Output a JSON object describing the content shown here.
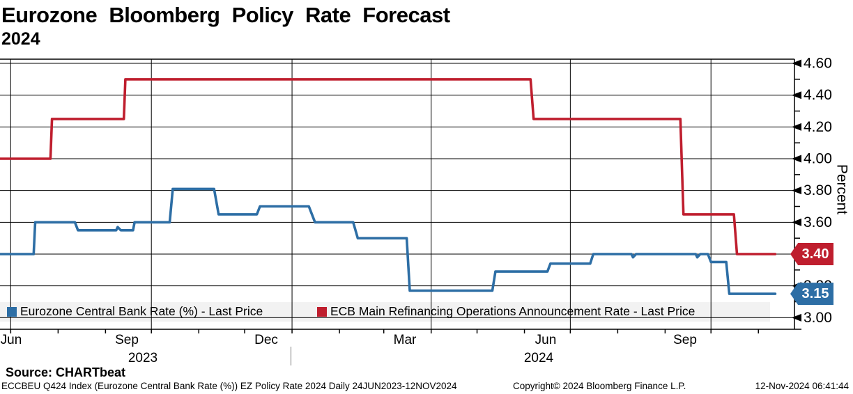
{
  "title": {
    "line1": "Eurozone Bloomberg Policy Rate Forecast",
    "line2": "2024"
  },
  "y_axis": {
    "label": "Percent",
    "major_ticks": [
      4.6,
      4.4,
      4.2,
      4.0,
      3.8,
      3.6,
      3.4,
      3.2,
      3.0
    ],
    "minor_ticks": [
      4.5,
      4.3,
      4.1,
      3.9,
      3.7,
      3.5,
      3.3,
      3.1
    ],
    "tick_format": "0.00"
  },
  "x_axis": {
    "month_labels": [
      {
        "text": "Jun",
        "x": 16
      },
      {
        "text": "Sep",
        "x": 182
      },
      {
        "text": "Dec",
        "x": 382
      },
      {
        "text": "Mar",
        "x": 581
      },
      {
        "text": "Jun",
        "x": 783
      },
      {
        "text": "Sep",
        "x": 983
      }
    ],
    "year_labels": [
      {
        "text": "2023",
        "x": 205
      },
      {
        "text": "2024",
        "x": 773
      }
    ],
    "month_tick_days": [
      7,
      38,
      69,
      99,
      130,
      160,
      191,
      222,
      251,
      282,
      312,
      343,
      373,
      404,
      435,
      465,
      496
    ],
    "quarter_gridline_days": [
      7,
      99,
      191,
      282,
      373,
      465
    ]
  },
  "legend": {
    "items": [
      {
        "label": "Eurozone Central Bank Rate (%) - Last Price",
        "color": "#2d6ea5",
        "x": 10
      },
      {
        "label": "ECB Main Refinancing Operations Announcement Rate - Last Price",
        "color": "#bf1e2e",
        "x": 455
      }
    ]
  },
  "last_price_badges": [
    {
      "value": "3.40",
      "color": "#bf1e2e",
      "series": "ECB Main Refinancing Operations Announcement Rate"
    },
    {
      "value": "3.15",
      "color": "#2d6ea5",
      "series": "Eurozone Central Bank Rate (%)"
    }
  ],
  "footer": {
    "source": "Source: CHARTbeat",
    "security_description": "ECCBEU Q424 Index (Eurozone Central Bank Rate (%)) EZ Policy Rate 2024  Daily 24JUN2023-12NOV2024",
    "copyright": "Copyright© 2024 Bloomberg Finance L.P.",
    "timestamp": "12-Nov-2024 06:41:44"
  },
  "chart_data": {
    "type": "line",
    "subtype": "step",
    "title": "Eurozone Bloomberg Policy Rate Forecast 2024",
    "ylabel": "Percent",
    "ylim": [
      2.93,
      4.63
    ],
    "x_unit": "days since 24JUN2023",
    "x_range_dates": [
      "24JUN2023",
      "12NOV2024"
    ],
    "x_range_days": [
      0,
      507
    ],
    "grid": true,
    "legend_position": "bottom",
    "series": [
      {
        "name": "Eurozone Central Bank Rate (%) - Last Price",
        "color": "#2d6ea5",
        "last_value": 3.15,
        "points": [
          [
            0,
            3.4
          ],
          [
            22,
            3.4
          ],
          [
            23,
            3.6
          ],
          [
            49,
            3.6
          ],
          [
            51,
            3.55
          ],
          [
            76,
            3.55
          ],
          [
            77,
            3.57
          ],
          [
            79,
            3.55
          ],
          [
            87,
            3.55
          ],
          [
            88,
            3.6
          ],
          [
            111,
            3.6
          ],
          [
            113,
            3.81
          ],
          [
            140,
            3.81
          ],
          [
            143,
            3.65
          ],
          [
            168,
            3.65
          ],
          [
            170,
            3.7
          ],
          [
            202,
            3.7
          ],
          [
            206,
            3.6
          ],
          [
            231,
            3.6
          ],
          [
            234,
            3.5
          ],
          [
            266,
            3.5
          ],
          [
            268,
            3.17
          ],
          [
            322,
            3.17
          ],
          [
            324,
            3.29
          ],
          [
            358,
            3.29
          ],
          [
            360,
            3.34
          ],
          [
            386,
            3.34
          ],
          [
            388,
            3.4
          ],
          [
            413,
            3.4
          ],
          [
            414,
            3.38
          ],
          [
            416,
            3.4
          ],
          [
            455,
            3.4
          ],
          [
            456,
            3.38
          ],
          [
            458,
            3.4
          ],
          [
            463,
            3.4
          ],
          [
            465,
            3.35
          ],
          [
            475,
            3.35
          ],
          [
            477,
            3.15
          ],
          [
            507,
            3.15
          ]
        ]
      },
      {
        "name": "ECB Main Refinancing Operations Announcement Rate - Last Price",
        "color": "#bf1e2e",
        "last_value": 3.4,
        "points": [
          [
            0,
            4.0
          ],
          [
            33,
            4.0
          ],
          [
            34,
            4.25
          ],
          [
            81,
            4.25
          ],
          [
            82,
            4.5
          ],
          [
            347,
            4.5
          ],
          [
            349,
            4.25
          ],
          [
            445,
            4.25
          ],
          [
            447,
            3.65
          ],
          [
            480,
            3.65
          ],
          [
            482,
            3.4
          ],
          [
            507,
            3.4
          ]
        ]
      }
    ],
    "key_events": [
      {
        "date": "27JUL2023",
        "series": "ECB MRO",
        "value": 4.25
      },
      {
        "date": "14SEP2023",
        "series": "ECB MRO",
        "value": 4.5
      },
      {
        "date": "06JUN2024",
        "series": "ECB MRO",
        "value": 4.25
      },
      {
        "date": "12SEP2024",
        "series": "ECB MRO",
        "value": 3.65
      },
      {
        "date": "17OCT2024",
        "series": "ECB MRO",
        "value": 3.4
      }
    ]
  },
  "style": {
    "legend_bg": "#f2f2f2",
    "grid_color": "#000000",
    "blue": "#2d6ea5",
    "red": "#bf1e2e"
  }
}
